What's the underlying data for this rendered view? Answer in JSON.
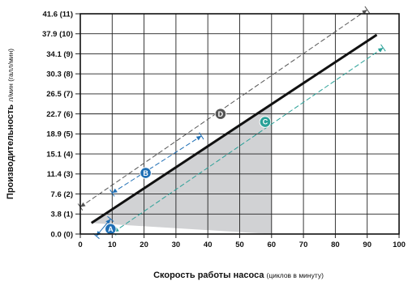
{
  "chart_data": {
    "type": "line",
    "xlabel": "Скорость работы насоса",
    "xlabel_unit": "(циклов в минуту)",
    "ylabel": "Производительность",
    "ylabel_unit": "л/мин (галл/мин)",
    "xlim": [
      0,
      100
    ],
    "ylim": [
      0,
      11
    ],
    "grid": true,
    "x_ticks": [
      0,
      10,
      20,
      30,
      40,
      50,
      60,
      70,
      80,
      90,
      100
    ],
    "y_ticks": [
      {
        "value": 0,
        "label": "0.0 (0)"
      },
      {
        "value": 1,
        "label": "3.8 (1)"
      },
      {
        "value": 2,
        "label": "7.6 (2)"
      },
      {
        "value": 3,
        "label": "11.4 (3)"
      },
      {
        "value": 4,
        "label": "15.1 (4)"
      },
      {
        "value": 5,
        "label": "18.9 (5)"
      },
      {
        "value": 6,
        "label": "22.7 (6)"
      },
      {
        "value": 7,
        "label": "26.5 (7)"
      },
      {
        "value": 8,
        "label": "30.3 (8)"
      },
      {
        "value": 9,
        "label": "34.1 (9)"
      },
      {
        "value": 10,
        "label": "37.9 (10)"
      },
      {
        "value": 11,
        "label": "41.6 (11)"
      }
    ],
    "main_line": {
      "x": [
        3.5,
        93
      ],
      "y": [
        0.55,
        9.95
      ]
    },
    "shaded_region": {
      "x": [
        3.5,
        60,
        60
      ],
      "y": [
        0.55,
        6.45,
        0
      ]
    },
    "ranges": [
      {
        "id": "A",
        "color": "#1f6fb5",
        "style": "solid",
        "start": [
          5,
          -0.1
        ],
        "end": [
          9.5,
          0.75
        ],
        "marker": [
          9.5,
          0.25
        ]
      },
      {
        "id": "B",
        "color": "#1f6fb5",
        "style": "dashed",
        "start": [
          10,
          2.05
        ],
        "end": [
          38,
          4.9
        ],
        "marker": [
          20.5,
          3.05
        ]
      },
      {
        "id": "C",
        "color": "#2aa198",
        "style": "dashed",
        "start": [
          10.5,
          0.1
        ],
        "end": [
          95,
          9.3
        ],
        "marker": [
          58,
          5.6
        ]
      },
      {
        "id": "D",
        "color": "#555555",
        "style": "dashed",
        "start": [
          0,
          1.35
        ],
        "end": [
          90,
          11.2
        ],
        "marker": [
          44,
          6.0
        ]
      }
    ]
  }
}
